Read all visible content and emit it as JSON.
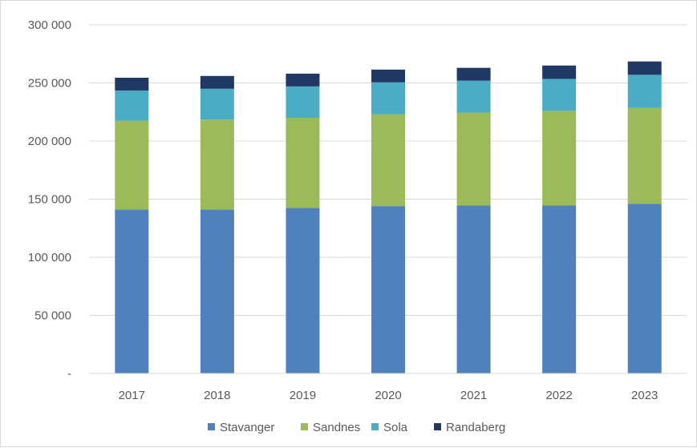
{
  "chart_data": {
    "type": "bar",
    "stacked": true,
    "categories": [
      "2017",
      "2018",
      "2019",
      "2020",
      "2021",
      "2022",
      "2023"
    ],
    "series": [
      {
        "name": "Stavanger",
        "color": "#4f81bd",
        "values": [
          141000,
          141000,
          142500,
          144000,
          144500,
          144500,
          146000
        ]
      },
      {
        "name": "Sandnes",
        "color": "#9bbb59",
        "values": [
          76500,
          77500,
          77500,
          79000,
          80000,
          81500,
          82500
        ]
      },
      {
        "name": "Sola",
        "color": "#4bacc6",
        "values": [
          26000,
          26500,
          27000,
          27500,
          27500,
          27500,
          28500
        ]
      },
      {
        "name": "Randaberg",
        "color": "#1f3864",
        "values": [
          11000,
          11000,
          11000,
          11000,
          11000,
          11500,
          11500
        ]
      }
    ],
    "ylim": [
      0,
      300000
    ],
    "yticks": [
      0,
      50000,
      100000,
      150000,
      200000,
      250000,
      300000
    ],
    "ytick_labels": [
      "-",
      "50 000",
      "100 000",
      "150 000",
      "200 000",
      "250 000",
      "300 000"
    ],
    "grid": true,
    "legend_position": "bottom"
  }
}
